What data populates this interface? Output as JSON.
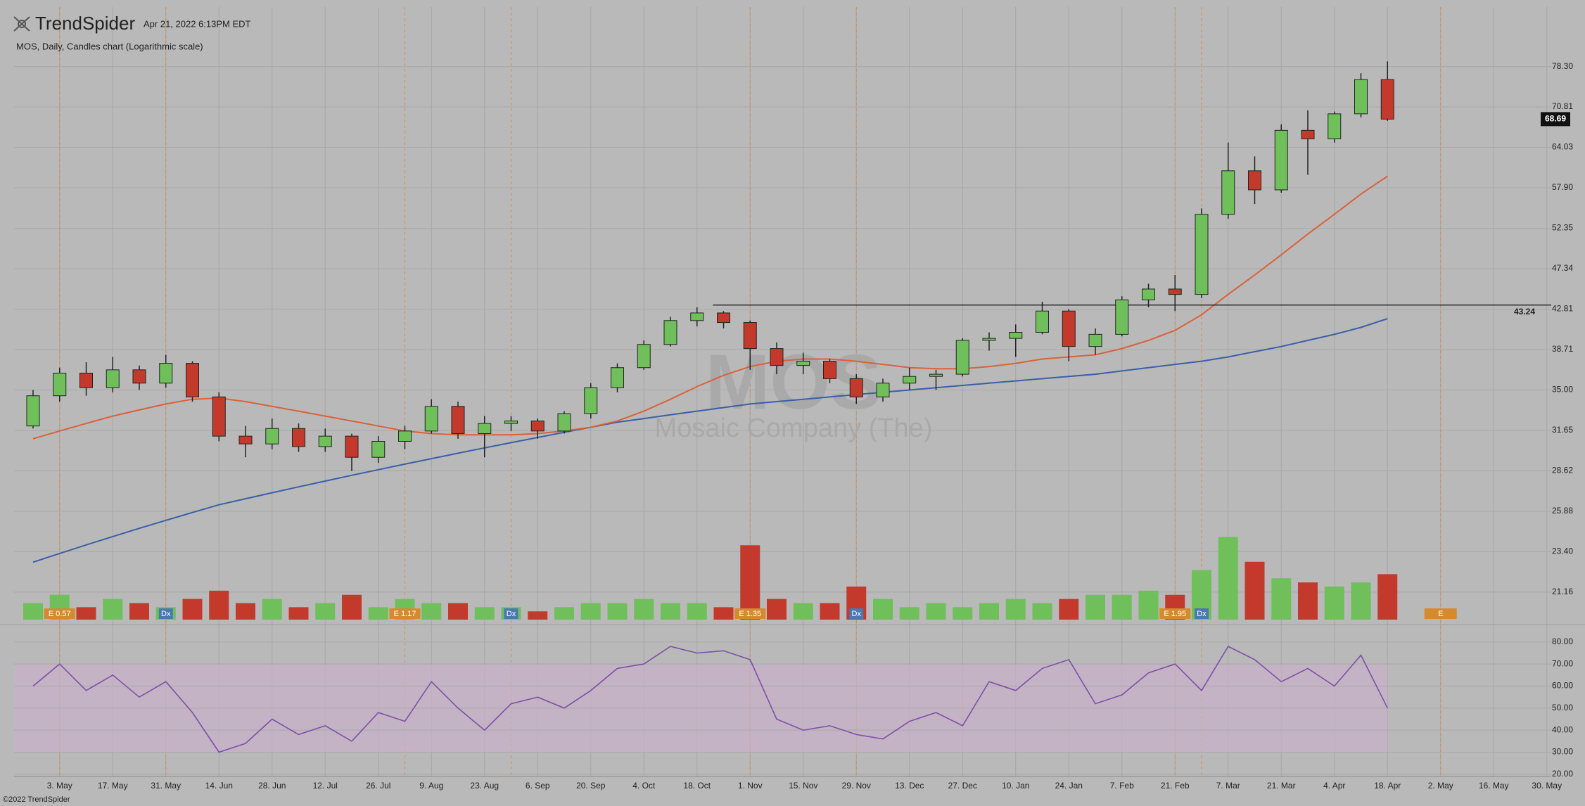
{
  "header": {
    "brand": "TrendSpider",
    "timestamp": "Apr 21, 2022 6:13PM EDT"
  },
  "footer": "©2022 TrendSpider",
  "chart_data": [
    {
      "type": "candlestick",
      "title": "MOS, Daily, Candles chart (Logarithmic scale)",
      "watermark_symbol": "MOS",
      "watermark_name": "Mosaic Company (The)",
      "categories": [
        null,
        "3. May",
        null,
        "17. May",
        null,
        "31. May",
        null,
        "14. Jun",
        null,
        "28. Jun",
        null,
        "12. Jul",
        null,
        "26. Jul",
        null,
        "9. Aug",
        null,
        "23. Aug",
        null,
        "6. Sep",
        null,
        "20. Sep",
        null,
        "4. Oct",
        null,
        "18. Oct",
        null,
        "1. Nov",
        null,
        "15. Nov",
        null,
        "29. Nov",
        null,
        "13. Dec",
        null,
        "27. Dec",
        null,
        "10. Jan",
        null,
        "24. Jan",
        null,
        "7. Feb",
        null,
        "21. Feb",
        null,
        "7. Mar",
        null,
        "21. Mar",
        null,
        "4. Apr",
        null,
        "18. Apr",
        null,
        "2. May",
        null,
        "16. May",
        null,
        "30. May"
      ],
      "open": [
        32.0,
        34.5,
        36.5,
        35.2,
        36.8,
        35.6,
        37.4,
        34.4,
        31.2,
        30.6,
        31.8,
        30.4,
        31.2,
        29.6,
        30.8,
        31.6,
        33.6,
        31.4,
        32.2,
        32.4,
        31.6,
        33.0,
        35.2,
        37.0,
        39.2,
        41.6,
        42.4,
        41.4,
        38.8,
        37.2,
        37.6,
        36.0,
        34.4,
        35.6,
        36.2,
        36.4,
        39.6,
        39.8,
        40.4,
        42.6,
        39.0,
        40.2,
        43.8,
        45.0,
        44.4,
        54.2,
        60.4,
        57.6,
        66.8,
        65.4,
        69.6,
        75.8,
        null,
        null,
        null,
        null,
        null,
        null
      ],
      "high": [
        35.0,
        37.0,
        37.5,
        38.0,
        37.2,
        38.2,
        37.6,
        34.8,
        32.0,
        32.6,
        32.2,
        31.8,
        31.4,
        31.2,
        32.0,
        34.2,
        34.0,
        32.8,
        32.8,
        32.6,
        33.2,
        35.6,
        37.4,
        39.6,
        42.0,
        43.0,
        42.6,
        41.6,
        39.4,
        38.4,
        37.8,
        36.4,
        36.0,
        37.0,
        36.8,
        39.8,
        40.4,
        41.2,
        43.6,
        42.8,
        40.8,
        44.2,
        45.6,
        46.6,
        55.0,
        64.8,
        62.6,
        67.8,
        70.2,
        70.0,
        77.0,
        79.3,
        null,
        null,
        null,
        null,
        null,
        null
      ],
      "low": [
        31.8,
        34.0,
        34.5,
        34.8,
        35.0,
        35.2,
        34.0,
        30.8,
        29.6,
        30.2,
        30.0,
        30.0,
        28.6,
        29.2,
        30.2,
        31.4,
        31.0,
        29.6,
        31.6,
        31.0,
        31.4,
        32.6,
        34.8,
        36.8,
        39.0,
        41.0,
        40.8,
        36.8,
        36.4,
        36.4,
        35.6,
        33.8,
        34.0,
        35.0,
        35.0,
        36.2,
        38.6,
        38.0,
        40.2,
        37.6,
        38.2,
        40.0,
        43.0,
        42.6,
        44.0,
        53.6,
        55.6,
        57.2,
        59.8,
        64.8,
        69.0,
        68.4,
        null,
        null,
        null,
        null,
        null,
        null
      ],
      "close": [
        34.5,
        36.5,
        35.2,
        36.8,
        35.6,
        37.4,
        34.4,
        31.2,
        30.6,
        31.8,
        30.4,
        31.2,
        29.6,
        30.8,
        31.6,
        33.6,
        31.4,
        32.2,
        32.4,
        31.6,
        33.0,
        35.2,
        37.0,
        39.2,
        41.6,
        42.4,
        41.4,
        38.8,
        37.2,
        37.6,
        36.0,
        34.4,
        35.6,
        36.2,
        36.4,
        39.6,
        39.8,
        40.4,
        42.6,
        39.0,
        40.2,
        43.8,
        45.0,
        44.4,
        54.2,
        60.4,
        57.6,
        66.8,
        65.4,
        69.6,
        75.8,
        68.69,
        null,
        null,
        null,
        null,
        null,
        null
      ],
      "up_color": "#6fbf5b",
      "down_color": "#c33a2c",
      "overlays": [
        {
          "color": "#3b5fa8",
          "values": [
            22.8,
            23.3,
            23.8,
            24.3,
            24.8,
            25.3,
            25.8,
            26.3,
            26.7,
            27.1,
            27.5,
            27.9,
            28.3,
            28.7,
            29.1,
            29.5,
            29.9,
            30.3,
            30.7,
            31.1,
            31.5,
            31.9,
            32.3,
            32.6,
            32.9,
            33.2,
            33.5,
            33.8,
            34.0,
            34.2,
            34.4,
            34.6,
            34.8,
            35.0,
            35.2,
            35.4,
            35.6,
            35.8,
            36.0,
            36.2,
            36.4,
            36.7,
            37.0,
            37.3,
            37.6,
            38.0,
            38.5,
            39.0,
            39.6,
            40.2,
            40.9,
            41.8,
            null,
            null,
            null,
            null,
            null,
            null
          ]
        },
        {
          "color": "#d9623a",
          "values": [
            31.0,
            31.6,
            32.2,
            32.8,
            33.3,
            33.8,
            34.2,
            34.3,
            34.0,
            33.6,
            33.2,
            32.8,
            32.4,
            32.0,
            31.6,
            31.4,
            31.3,
            31.3,
            31.3,
            31.4,
            31.6,
            31.9,
            32.4,
            33.2,
            34.2,
            35.3,
            36.3,
            37.1,
            37.6,
            37.8,
            37.8,
            37.6,
            37.3,
            37.0,
            36.9,
            36.9,
            37.1,
            37.4,
            37.8,
            38.0,
            38.2,
            38.8,
            39.6,
            40.6,
            42.2,
            44.4,
            46.6,
            49.0,
            51.6,
            54.2,
            57.0,
            59.6,
            null,
            null,
            null,
            null,
            null,
            null
          ]
        }
      ],
      "log_scale": true,
      "grid": true,
      "ylim": [
        19.76,
        90.8
      ],
      "yticks": [
        {
          "value": 78.3,
          "label": "78.30"
        },
        70.81,
        64.03,
        {
          "value": 57.9,
          "label": "57.90"
        },
        52.35,
        47.34,
        42.81,
        38.71,
        {
          "value": 35,
          "label": "35.00"
        },
        31.65,
        28.62,
        25.88,
        {
          "value": 23.4,
          "label": "23.40"
        },
        21.16
      ],
      "last_price": 68.69,
      "level": 43.24
    },
    {
      "type": "bar",
      "values": [
        4,
        6,
        3,
        5,
        4,
        3,
        5,
        7,
        4,
        5,
        3,
        4,
        6,
        3,
        5,
        4,
        4,
        3,
        3,
        2,
        3,
        4,
        4,
        5,
        4,
        4,
        3,
        18,
        5,
        4,
        4,
        8,
        5,
        3,
        4,
        3,
        4,
        5,
        4,
        5,
        6,
        6,
        7,
        6,
        12,
        20,
        14,
        10,
        9,
        8,
        9,
        11,
        null,
        null,
        null,
        null,
        null,
        null
      ],
      "ylim": [
        0,
        24
      ],
      "events": [
        {
          "label": "E 0.57",
          "x": 1
        },
        {
          "label": "Dx",
          "x": 5
        },
        {
          "label": "E 1.17",
          "x": 14
        },
        {
          "label": "Dx",
          "x": 18
        },
        {
          "label": "E 1.35",
          "x": 27
        },
        {
          "label": "Dx",
          "x": 31
        },
        {
          "label": "E 1.95",
          "x": 43
        },
        {
          "label": "Dx",
          "x": 44
        },
        {
          "label": "E",
          "x": 53
        }
      ]
    },
    {
      "type": "line",
      "color": "#7d4fa8",
      "values": [
        60,
        70,
        58,
        65,
        55,
        62,
        48,
        30,
        34,
        45,
        38,
        42,
        35,
        48,
        44,
        62,
        50,
        40,
        52,
        55,
        50,
        58,
        68,
        70,
        78,
        75,
        76,
        72,
        45,
        40,
        42,
        38,
        36,
        44,
        48,
        42,
        62,
        58,
        68,
        72,
        52,
        56,
        66,
        70,
        58,
        78,
        72,
        62,
        68,
        60,
        74,
        50,
        null,
        null,
        null,
        null,
        null,
        null
      ],
      "ylim": [
        19,
        86
      ],
      "yticks": [
        {
          "value": 80,
          "label": "80.00"
        },
        {
          "value": 70,
          "label": "70.00"
        },
        {
          "value": 60,
          "label": "60.00"
        },
        {
          "value": 50,
          "label": "50.00"
        },
        {
          "value": 40,
          "label": "40.00"
        },
        {
          "value": 30,
          "label": "30.00"
        },
        {
          "value": 20,
          "label": "20.00"
        }
      ],
      "band": [
        30,
        70
      ]
    }
  ]
}
